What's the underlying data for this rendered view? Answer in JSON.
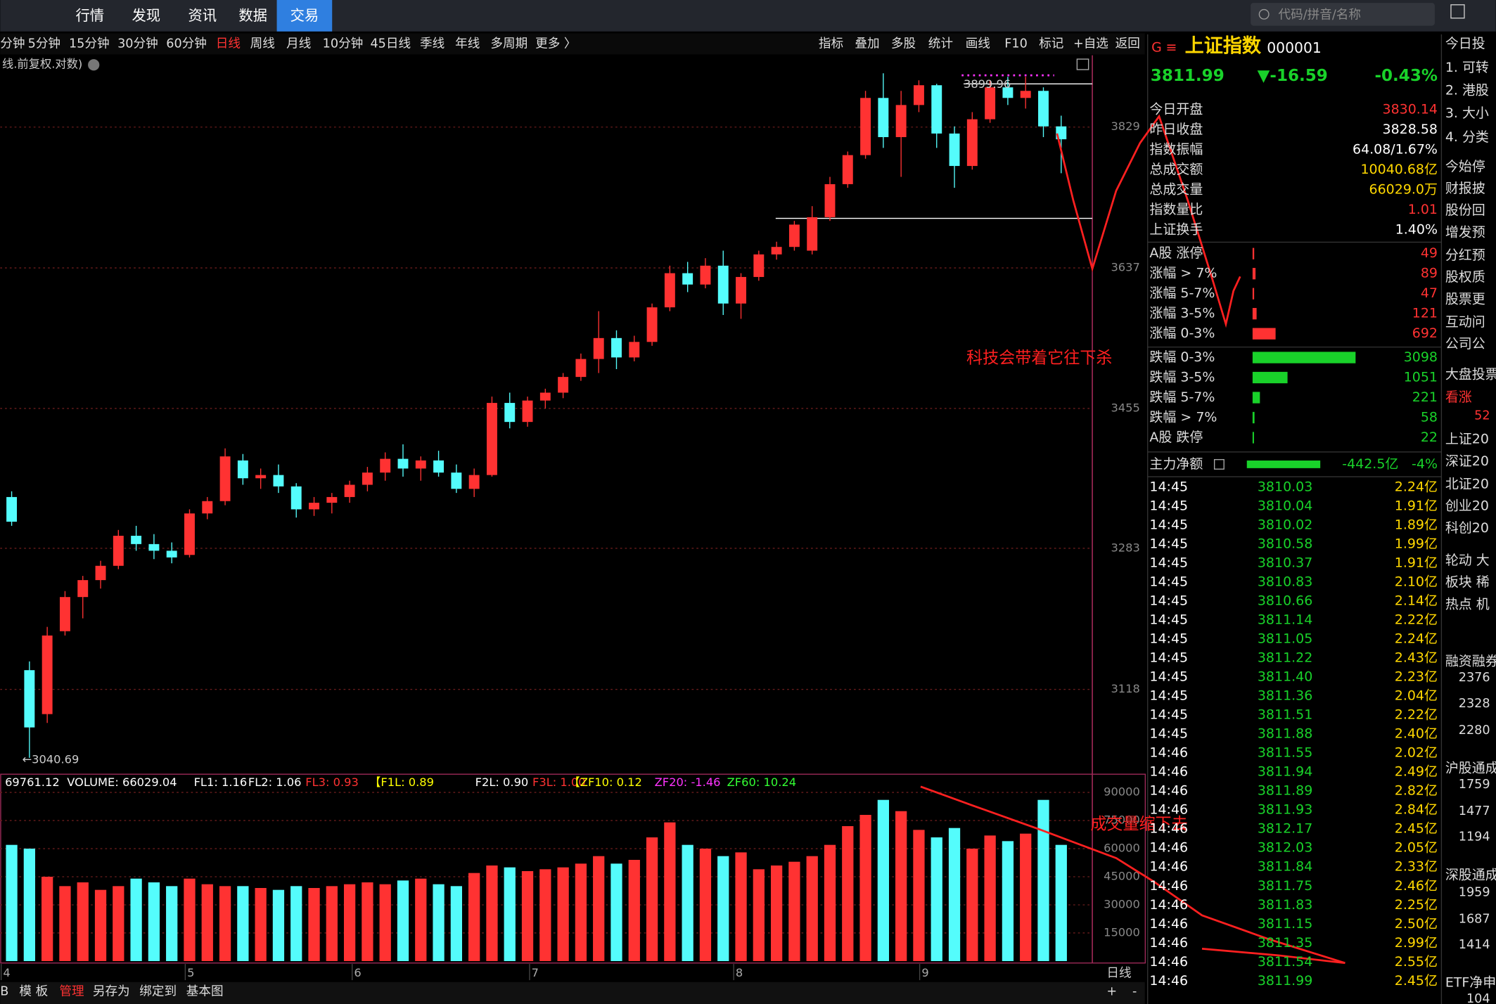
{
  "nav": {
    "items": [
      "行情",
      "发现",
      "资讯",
      "数据",
      "交易"
    ],
    "search": "代码/拼音/名称"
  },
  "periods": [
    "分钟",
    "5分钟",
    "15分钟",
    "30分钟",
    "60分钟",
    "日线",
    "周线",
    "月线",
    "10分钟",
    "45日线",
    "季线",
    "年线",
    "多周期",
    "更多 〉"
  ],
  "tools": [
    "指标",
    "叠加",
    "多股",
    "统计",
    "画线",
    "F10",
    "标记",
    "+自选",
    "返回"
  ],
  "chart_label": "线.前复权.对数)",
  "chart_data": [
    {
      "type": "candlestick",
      "log_scale": true,
      "ylim": [
        3025,
        3928
      ],
      "yticks": [
        3829,
        3637,
        3455,
        3283,
        3118
      ],
      "grid": true,
      "up_color": "#ff3232",
      "down_color": "#54fcfc",
      "annotations": [
        "3899.96",
        "←3040.69",
        "科技会带着它往下杀"
      ],
      "candles": [
        [
          3345,
          3352,
          3310,
          3315
        ],
        [
          3140,
          3150,
          3041,
          3075
        ],
        [
          3090,
          3190,
          3080,
          3180
        ],
        [
          3185,
          3232,
          3180,
          3225
        ],
        [
          3225,
          3250,
          3200,
          3245
        ],
        [
          3245,
          3268,
          3235,
          3262
        ],
        [
          3262,
          3305,
          3258,
          3298
        ],
        [
          3298,
          3310,
          3280,
          3288
        ],
        [
          3288,
          3300,
          3270,
          3280
        ],
        [
          3280,
          3290,
          3265,
          3272
        ],
        [
          3275,
          3330,
          3272,
          3325
        ],
        [
          3325,
          3345,
          3318,
          3340
        ],
        [
          3340,
          3405,
          3335,
          3395
        ],
        [
          3390,
          3398,
          3360,
          3368
        ],
        [
          3368,
          3380,
          3355,
          3372
        ],
        [
          3372,
          3385,
          3350,
          3358
        ],
        [
          3358,
          3362,
          3320,
          3330
        ],
        [
          3330,
          3345,
          3322,
          3338
        ],
        [
          3338,
          3350,
          3325,
          3345
        ],
        [
          3345,
          3365,
          3338,
          3360
        ],
        [
          3360,
          3382,
          3352,
          3375
        ],
        [
          3375,
          3400,
          3365,
          3392
        ],
        [
          3392,
          3410,
          3370,
          3380
        ],
        [
          3380,
          3395,
          3365,
          3390
        ],
        [
          3390,
          3402,
          3370,
          3375
        ],
        [
          3375,
          3385,
          3350,
          3355
        ],
        [
          3355,
          3380,
          3345,
          3372
        ],
        [
          3372,
          3470,
          3370,
          3462
        ],
        [
          3462,
          3475,
          3430,
          3438
        ],
        [
          3438,
          3470,
          3432,
          3465
        ],
        [
          3465,
          3480,
          3455,
          3475
        ],
        [
          3475,
          3500,
          3468,
          3495
        ],
        [
          3495,
          3525,
          3490,
          3518
        ],
        [
          3518,
          3580,
          3500,
          3545
        ],
        [
          3545,
          3555,
          3505,
          3520
        ],
        [
          3520,
          3548,
          3515,
          3540
        ],
        [
          3540,
          3590,
          3535,
          3585
        ],
        [
          3585,
          3640,
          3580,
          3630
        ],
        [
          3630,
          3645,
          3605,
          3615
        ],
        [
          3615,
          3650,
          3610,
          3640
        ],
        [
          3640,
          3660,
          3575,
          3590
        ],
        [
          3590,
          3630,
          3570,
          3625
        ],
        [
          3625,
          3660,
          3620,
          3655
        ],
        [
          3655,
          3672,
          3648,
          3665
        ],
        [
          3665,
          3700,
          3660,
          3695
        ],
        [
          3660,
          3720,
          3655,
          3705
        ],
        [
          3705,
          3760,
          3700,
          3750
        ],
        [
          3750,
          3795,
          3745,
          3790
        ],
        [
          3790,
          3880,
          3785,
          3870
        ],
        [
          3870,
          3905,
          3800,
          3815
        ],
        [
          3815,
          3880,
          3760,
          3860
        ],
        [
          3860,
          3895,
          3850,
          3888
        ],
        [
          3888,
          3890,
          3800,
          3820
        ],
        [
          3820,
          3830,
          3745,
          3775
        ],
        [
          3775,
          3850,
          3770,
          3840
        ],
        [
          3840,
          3895,
          3835,
          3885
        ],
        [
          3885,
          3900,
          3860,
          3870
        ],
        [
          3870,
          3900,
          3855,
          3880
        ],
        [
          3880,
          3885,
          3815,
          3830
        ],
        [
          3830,
          3845,
          3765,
          3812
        ]
      ]
    },
    {
      "type": "bar",
      "ylim": [
        0,
        99700
      ],
      "yticks": [
        90000,
        75000,
        60000,
        45000,
        30000,
        15000
      ],
      "header": [
        "69761.12",
        "VOLUME: 66029.04",
        "FL1: 1.16",
        "FL2: 1.06",
        "FL3: 0.93",
        "【F1L: 0.89",
        "F2L: 0.90",
        "F3L: 1.00",
        "【ZF10: 0.12",
        "ZF20: -1.46",
        "ZF60: 10.24"
      ],
      "header_colors": [
        "#fff",
        "#fff",
        "#fff",
        "#fff",
        "#ff3232",
        "#ffff00",
        "#fff",
        "#ff3232",
        "#ffff00",
        "#ff33ff",
        "#33ff33"
      ],
      "annotation": "成交量缩下去",
      "x_labels": [
        "4",
        "5",
        "6",
        "7",
        "8",
        "9"
      ],
      "period": "日线",
      "values": [
        62000,
        60000,
        45000,
        40000,
        42000,
        38000,
        40000,
        44000,
        42000,
        40000,
        44000,
        41000,
        40000,
        40000,
        39000,
        38000,
        40000,
        39000,
        40000,
        41000,
        42000,
        41000,
        43000,
        44000,
        41000,
        40000,
        47000,
        51000,
        50000,
        48000,
        49000,
        50000,
        52000,
        56000,
        52000,
        54000,
        66000,
        74000,
        62000,
        60000,
        56000,
        58000,
        49000,
        51000,
        53000,
        56000,
        62000,
        72000,
        78000,
        86000,
        80000,
        70000,
        66000,
        71000,
        60000,
        67000,
        64000,
        68000,
        86000,
        62000
      ]
    }
  ],
  "quote": {
    "flag": "G",
    "menu": "≡",
    "name": "上证指数",
    "code": "000001",
    "price": "3811.99",
    "change": "▼-16.59",
    "pct": "-0.43%",
    "stats": [
      [
        "今日开盘",
        "3830.14"
      ],
      [
        "昨日收盘",
        "3828.58"
      ],
      [
        "指数振幅",
        "64.08/1.67%"
      ],
      [
        "总成交额",
        "10040.68亿"
      ],
      [
        "总成交量",
        "66029.0万"
      ],
      [
        "指数量比",
        "1.01"
      ],
      [
        "上证换手",
        "1.40%"
      ]
    ],
    "stat_colors": [
      "#ff3232",
      "#fff",
      "#fff",
      "#ffd700",
      "#ffd700",
      "#ff3232",
      "#fff"
    ]
  },
  "breadth": {
    "labels": [
      "A股 涨停",
      "涨幅 > 7%",
      "涨幅 5-7%",
      "涨幅 3-5%",
      "涨幅 0-3%",
      "跌幅 0-3%",
      "跌幅 3-5%",
      "跌幅 5-7%",
      "跌幅 > 7%",
      "A股 跌停"
    ],
    "values": [
      49,
      89,
      47,
      121,
      692,
      3098,
      1051,
      221,
      58,
      22
    ],
    "up_color": "#ff3232",
    "down_color": "#19d22a"
  },
  "flow": {
    "label": "主力净额",
    "value": "-442.5亿",
    "pct": "-4%"
  },
  "ticks": [
    [
      "14:45",
      "3810.03",
      "2.24亿"
    ],
    [
      "14:45",
      "3810.04",
      "1.91亿"
    ],
    [
      "14:45",
      "3810.02",
      "1.89亿"
    ],
    [
      "14:45",
      "3810.58",
      "1.99亿"
    ],
    [
      "14:45",
      "3810.37",
      "1.91亿"
    ],
    [
      "14:45",
      "3810.83",
      "2.10亿"
    ],
    [
      "14:45",
      "3810.66",
      "2.14亿"
    ],
    [
      "14:45",
      "3811.14",
      "2.22亿"
    ],
    [
      "14:45",
      "3811.05",
      "2.24亿"
    ],
    [
      "14:45",
      "3811.22",
      "2.43亿"
    ],
    [
      "14:45",
      "3811.40",
      "2.23亿"
    ],
    [
      "14:45",
      "3811.36",
      "2.04亿"
    ],
    [
      "14:45",
      "3811.51",
      "2.22亿"
    ],
    [
      "14:45",
      "3811.88",
      "2.40亿"
    ],
    [
      "14:46",
      "3811.55",
      "2.02亿"
    ],
    [
      "14:46",
      "3811.94",
      "2.49亿"
    ],
    [
      "14:46",
      "3811.89",
      "2.82亿"
    ],
    [
      "14:46",
      "3811.93",
      "2.84亿"
    ],
    [
      "14:46",
      "3812.17",
      "2.45亿"
    ],
    [
      "14:46",
      "3812.03",
      "2.05亿"
    ],
    [
      "14:46",
      "3811.84",
      "2.33亿"
    ],
    [
      "14:46",
      "3811.75",
      "2.46亿"
    ],
    [
      "14:46",
      "3811.83",
      "2.25亿"
    ],
    [
      "14:46",
      "3811.15",
      "2.50亿"
    ],
    [
      "14:46",
      "3811.35",
      "2.99亿"
    ],
    [
      "14:46",
      "3811.54",
      "2.55亿"
    ],
    [
      "14:46",
      "3811.99",
      "2.45亿"
    ]
  ],
  "side": [
    "今日投",
    "1. 可转",
    "2. 港股",
    "3. 大小",
    "4. 分类",
    "今始停",
    "财报披",
    "股份回",
    "增发预",
    "分红预",
    "股权质",
    "股票更",
    "互动问",
    "公司公",
    "大盘投票",
    "看涨",
    "52",
    "上证20",
    "深证20",
    "北证20",
    "创业20",
    "科创20",
    "轮动 大",
    "板块 稀",
    "热点 机",
    "融资融券",
    "2376",
    "2328",
    "2280",
    "沪股通成",
    "1759",
    "1477",
    "1194",
    "深股通成",
    "1959",
    "1687",
    "1414",
    "ETF净申",
    "104"
  ],
  "bottom": [
    "B",
    "模 板",
    "管理",
    "另存为",
    "绑定到",
    "基本图",
    "+",
    "-"
  ]
}
